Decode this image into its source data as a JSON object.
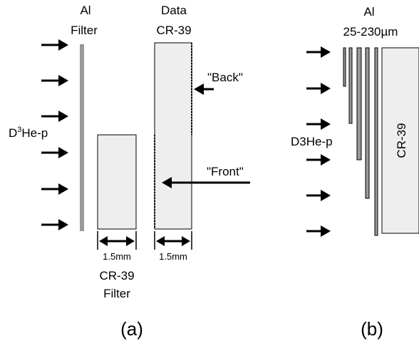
{
  "panel_a": {
    "al_filter_label_line1": "Al",
    "al_filter_label_line2": "Filter",
    "data_cr39_label_line1": "Data",
    "data_cr39_label_line2": "CR-39",
    "back_label": "\"Back\"",
    "front_label": "\"Front\"",
    "particle_label_base": "D",
    "particle_label_sup": "3",
    "particle_label_rest": "He-p",
    "filter_thickness": "1.5mm",
    "data_thickness": "1.5mm",
    "cr39_filter_label_line1": "CR-39",
    "cr39_filter_label_line2": "Filter",
    "caption": "(a)"
  },
  "panel_b": {
    "al_label_line1": "Al",
    "al_label_line2": "25-230µm",
    "particle_label": "D3He-p",
    "cr39_label": "CR-39",
    "caption": "(b)"
  },
  "colors": {
    "al_filter": "#999999",
    "cr39_fill": "#eeeeee",
    "outline": "#000000"
  }
}
